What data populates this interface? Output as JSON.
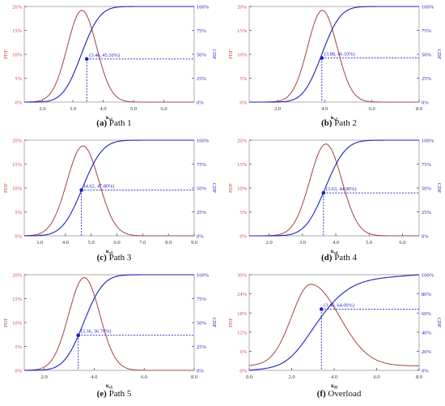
{
  "colors": {
    "pdf": "#c0504d",
    "cdf": "#1f1fbf",
    "axis": "#444444"
  },
  "chart_data": [
    {
      "type": "line",
      "caption_letter": "(a)",
      "caption_text": " Path 1",
      "xlabel_main": "κ",
      "xlabel_sub": "s1",
      "ylabel_left": "PDF",
      "ylabel_right": "CDF",
      "xlim": [
        1.4,
        7.0
      ],
      "xticks": [
        "2.0",
        "3.0",
        "4.0",
        "5.0",
        "6.0"
      ],
      "ylim_left": [
        0,
        20
      ],
      "yticks_left": [
        "0%",
        "5%",
        "10%",
        "15%",
        "20%"
      ],
      "ylim_right": [
        0,
        100
      ],
      "yticks_right": [
        "0%",
        "25%",
        "50%",
        "75%",
        "100%"
      ],
      "pdf": {
        "mean": 3.3,
        "sd": 0.48,
        "peak": 19.2
      },
      "point": {
        "x": 3.46,
        "y": 45.1
      },
      "annotation": "(3.46, 45.10%)"
    },
    {
      "type": "line",
      "caption_letter": "(b)",
      "caption_text": " Path 2",
      "xlabel_main": "κ",
      "xlabel_sub": "s2",
      "ylabel_left": "PDF",
      "ylabel_right": "CDF",
      "xlim": [
        0.8,
        8.0
      ],
      "xticks": [
        "2.0",
        "4.0",
        "6.0",
        "8.0"
      ],
      "ylim_left": [
        0,
        20
      ],
      "yticks_left": [
        "0%",
        "5%",
        "10%",
        "15%",
        "20%"
      ],
      "ylim_right": [
        0,
        100
      ],
      "yticks_right": [
        "0%",
        "25%",
        "50%",
        "75%",
        "100%"
      ],
      "pdf": {
        "mean": 3.9,
        "sd": 0.62,
        "peak": 19.2
      },
      "point": {
        "x": 3.88,
        "y": 46.1
      },
      "annotation": "(3.88, 46.10%)"
    },
    {
      "type": "line",
      "caption_letter": "(c)",
      "caption_text": " Path 3",
      "xlabel_main": "κ",
      "xlabel_sub": "s3",
      "ylabel_left": "PDF",
      "ylabel_right": "CDF",
      "xlim": [
        2.4,
        9.0
      ],
      "xticks": [
        "3.0",
        "4.0",
        "5.0",
        "6.0",
        "7.0",
        "8.0",
        "9.0"
      ],
      "ylim_left": [
        0,
        20
      ],
      "yticks_left": [
        "0%",
        "5%",
        "10%",
        "15%",
        "20%"
      ],
      "ylim_right": [
        0,
        100
      ],
      "yticks_right": [
        "0%",
        "25%",
        "50%",
        "75%",
        "100%"
      ],
      "pdf": {
        "mean": 4.68,
        "sd": 0.62,
        "peak": 18.8
      },
      "point": {
        "x": 4.62,
        "y": 47.8
      },
      "annotation": "(4.62, 47.80%)"
    },
    {
      "type": "line",
      "caption_letter": "(d)",
      "caption_text": " Path 4",
      "xlabel_main": "κ",
      "xlabel_sub": "s4",
      "ylabel_left": "PDF",
      "ylabel_right": "CDF",
      "xlim": [
        1.4,
        6.5
      ],
      "xticks": [
        "2.0",
        "3.0",
        "4.0",
        "5.0",
        "6.0"
      ],
      "ylim_left": [
        0,
        20
      ],
      "yticks_left": [
        "0%",
        "5%",
        "10%",
        "15%",
        "20%"
      ],
      "ylim_right": [
        0,
        100
      ],
      "yticks_right": [
        "0%",
        "25%",
        "50%",
        "75%",
        "100%"
      ],
      "pdf": {
        "mean": 3.7,
        "sd": 0.48,
        "peak": 19.2
      },
      "point": {
        "x": 3.63,
        "y": 44.9
      },
      "annotation": "(3.63, 44.90%)"
    },
    {
      "type": "line",
      "caption_letter": "(e)",
      "caption_text": " Path 5",
      "xlabel_main": "κ",
      "xlabel_sub": "s5",
      "ylabel_left": "PDF",
      "ylabel_right": "CDF",
      "xlim": [
        1.2,
        8.0
      ],
      "xticks": [
        "2.0",
        "4.0",
        "6.0",
        "8.0"
      ],
      "ylim_left": [
        0,
        20
      ],
      "yticks_left": [
        "0%",
        "5%",
        "10%",
        "15%",
        "20%"
      ],
      "ylim_right": [
        0,
        100
      ],
      "yticks_right": [
        "0%",
        "25%",
        "50%",
        "75%",
        "100%"
      ],
      "pdf": {
        "mean": 3.6,
        "sd": 0.62,
        "peak": 19.4
      },
      "point": {
        "x": 3.36,
        "y": 36.7
      },
      "annotation": "(3.36, 36.70%)"
    },
    {
      "type": "line",
      "caption_letter": "(f)",
      "caption_text": " Overload",
      "xlabel_main": "κ",
      "xlabel_sub": "H",
      "ylabel_left": "PDF",
      "ylabel_right": "CDF",
      "xlim": [
        0,
        8.0
      ],
      "xticks": [
        "0.0",
        "2.0",
        "4.0",
        "6.0",
        "8.0"
      ],
      "ylim_left": [
        0,
        30
      ],
      "yticks_left": [
        "0%",
        "6%",
        "12%",
        "18%",
        "24%",
        "30%"
      ],
      "ylim_right": [
        0,
        100
      ],
      "yticks_right": [
        "0%",
        "20%",
        "40%",
        "60%",
        "80%",
        "100%"
      ],
      "pdf": {
        "mode": 2.9,
        "sd_left": 0.9,
        "sd_right": 1.35,
        "peak": 27.0,
        "floor": 1.4
      },
      "point": {
        "x": 3.4,
        "y": 64.0
      },
      "annotation": "(3.40, 64.00%)"
    }
  ]
}
